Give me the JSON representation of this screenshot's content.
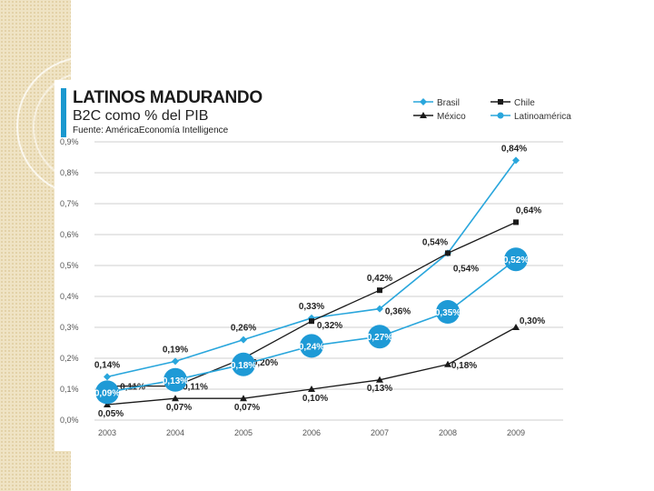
{
  "chart_data": {
    "type": "line",
    "title": "LATINOS MADURANDO",
    "subtitle": "B2C como % del PIB",
    "source": "Fuente: AméricaEconomía Intelligence",
    "x": [
      "2003",
      "2004",
      "2005",
      "2006",
      "2007",
      "2008",
      "2009"
    ],
    "yticks": [
      "0,0%",
      "0,1%",
      "0,2%",
      "0,3%",
      "0,4%",
      "0,5%",
      "0,6%",
      "0,7%",
      "0,8%",
      "0,9%"
    ],
    "ylim": [
      0,
      0.9
    ],
    "legend_position": "top-right",
    "series": [
      {
        "name": "Brasil",
        "color": "#29a6dc",
        "marker": "diamond",
        "values": [
          0.14,
          0.19,
          0.26,
          0.33,
          0.36,
          0.54,
          0.84
        ],
        "labels": [
          "0,14%",
          "0,19%",
          "0,26%",
          "0,33%",
          "0,36%",
          "0,54%",
          "0,84%"
        ]
      },
      {
        "name": "Chile",
        "color": "#1a1a1a",
        "marker": "square",
        "values": [
          0.11,
          0.11,
          0.2,
          0.32,
          0.42,
          0.54,
          0.64
        ],
        "labels": [
          "0,11%",
          "0,11%",
          "0,20%",
          "0,32%",
          "0,42%",
          "0,54%",
          "0,64%"
        ]
      },
      {
        "name": "México",
        "color": "#1a1a1a",
        "marker": "triangle",
        "values": [
          0.05,
          0.07,
          0.07,
          0.1,
          0.13,
          0.18,
          0.3
        ],
        "labels": [
          "0,05%",
          "0,07%",
          "0,07%",
          "0,10%",
          "0,13%",
          "0,18%",
          "0,30%"
        ]
      },
      {
        "name": "Latinoamérica",
        "color": "#29a6dc",
        "marker": "circle",
        "values": [
          0.09,
          0.13,
          0.18,
          0.24,
          0.27,
          0.35,
          0.52
        ],
        "labels": [
          "0,09%",
          "0,13%",
          "0,18%",
          "0,24%",
          "0,27%",
          "0,35%",
          "0,52%"
        ]
      }
    ]
  }
}
